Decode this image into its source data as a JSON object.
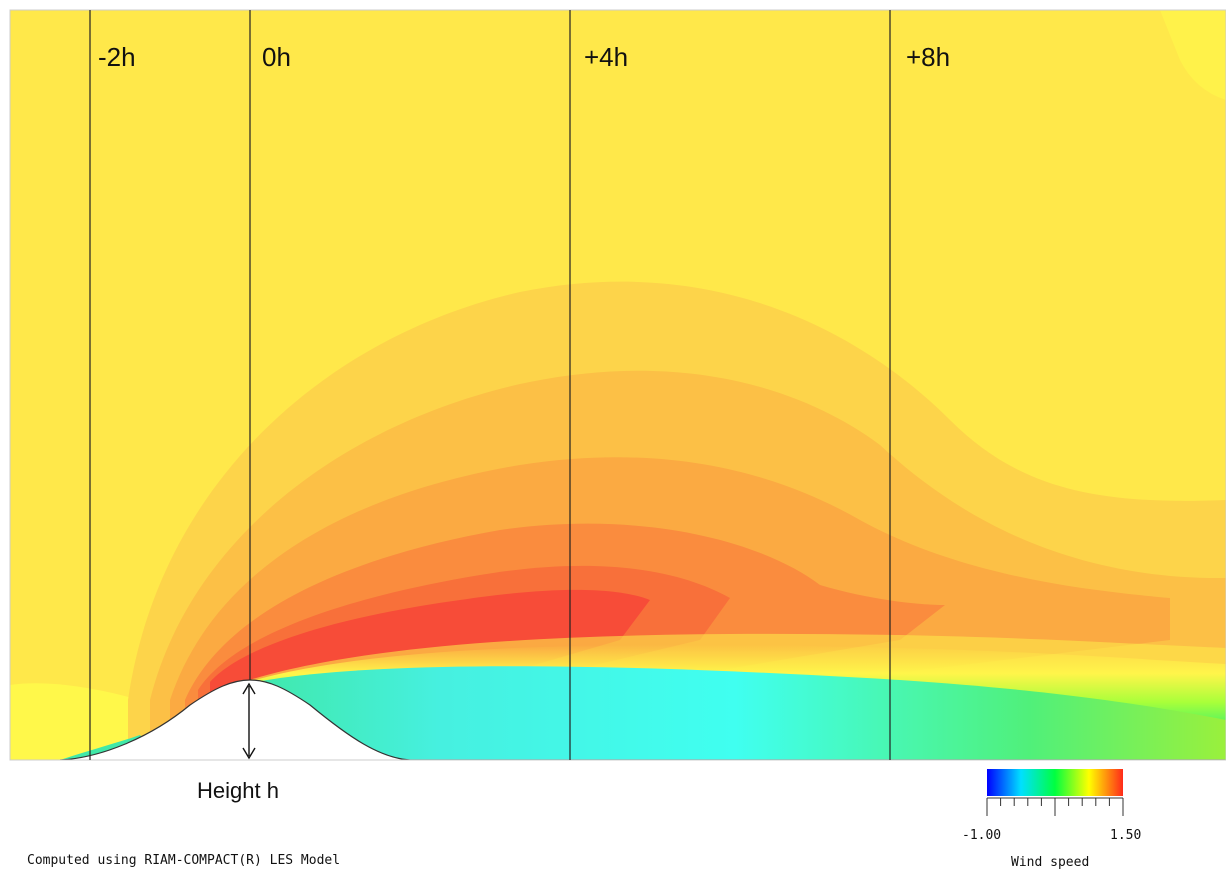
{
  "figure": {
    "position_labels": [
      "-2h",
      "0h",
      "+4h",
      "+8h"
    ],
    "height_label": "Height h",
    "credit": "Computed using RIAM-COMPACT(R) LES Model"
  },
  "colorbar": {
    "min_label": "-1.00",
    "max_label": "1.50",
    "title": "Wind speed",
    "colors": [
      "#0000ff",
      "#00e0ff",
      "#00ff40",
      "#ffff00",
      "#ff2a1a"
    ]
  },
  "colors": {
    "background_field": "#ffe84a",
    "peak_speed": "#ff4a3a",
    "wake": "#40ffe8",
    "terrain": "#ffffff"
  }
}
